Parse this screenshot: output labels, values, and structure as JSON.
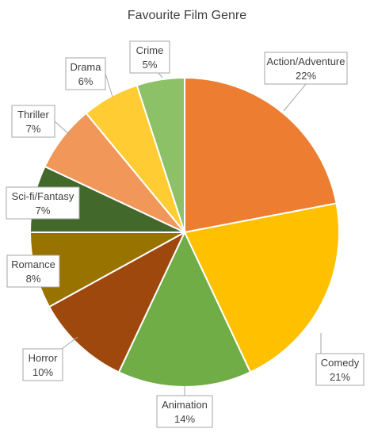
{
  "chart_data": {
    "type": "pie",
    "title": "Favourite Film Genre",
    "slices": [
      {
        "label": "Action/Adventure",
        "value": 22,
        "value_label": "22%",
        "color": "#ED7D31"
      },
      {
        "label": "Comedy",
        "value": 21,
        "value_label": "21%",
        "color": "#FFC000"
      },
      {
        "label": "Animation",
        "value": 14,
        "value_label": "14%",
        "color": "#70AD47"
      },
      {
        "label": "Horror",
        "value": 10,
        "value_label": "10%",
        "color": "#9E480E"
      },
      {
        "label": "Romance",
        "value": 8,
        "value_label": "8%",
        "color": "#997300"
      },
      {
        "label": "Sci-fi/Fantasy",
        "value": 7,
        "value_label": "7%",
        "color": "#43682B"
      },
      {
        "label": "Thriller",
        "value": 7,
        "value_label": "7%",
        "color": "#F1975A"
      },
      {
        "label": "Drama",
        "value": 6,
        "value_label": "6%",
        "color": "#FFCD33"
      },
      {
        "label": "Crime",
        "value": 5,
        "value_label": "5%",
        "color": "#8CC168"
      }
    ],
    "start_angle": "12 o'clock",
    "direction": "clockwise",
    "legend": "none",
    "data_labels": "callouts"
  }
}
